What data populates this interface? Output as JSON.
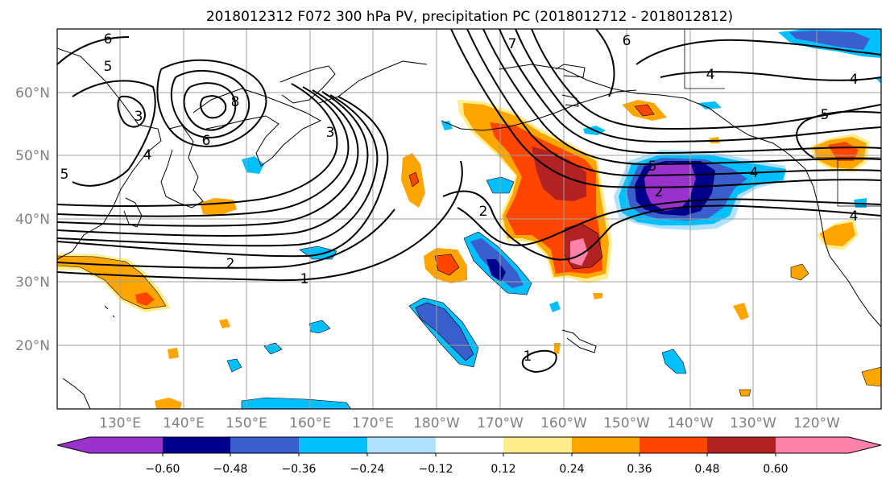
{
  "chart_data": {
    "type": "contour-map",
    "title": "2018012312 F072 300 hPa PV, precipitation PC (2018012712 - 2018012812)",
    "lat_labels": [
      "60°N",
      "50°N",
      "40°N",
      "30°N",
      "20°N"
    ],
    "lon_labels": [
      "130°E",
      "140°E",
      "150°E",
      "160°E",
      "170°E",
      "180°W",
      "170°W",
      "160°W",
      "150°W",
      "140°W",
      "130°W",
      "120°W"
    ],
    "colorbar": {
      "tick_labels": [
        "−0.60",
        "−0.48",
        "−0.36",
        "−0.24",
        "−0.12",
        "0.12",
        "0.24",
        "0.36",
        "0.48",
        "0.60"
      ],
      "levels": [
        -0.6,
        -0.48,
        -0.36,
        -0.24,
        -0.12,
        0.12,
        0.24,
        0.36,
        0.48,
        0.6
      ],
      "colors": [
        "#9932cc",
        "#00008b",
        "#3a5fcd",
        "#00bfff",
        "#b0e2ff",
        "#ffffff",
        "#ffec8b",
        "#ffa500",
        "#ff4500",
        "#b22222",
        "#ff82ab"
      ],
      "extend": "both"
    },
    "contour_labels": [
      "1",
      "2",
      "3",
      "4",
      "5",
      "6",
      "7",
      "8"
    ]
  },
  "colors": {
    "grid": "#a0a0a0",
    "coast": "#000000",
    "contour": "#000000",
    "axis_text": "#808080"
  }
}
